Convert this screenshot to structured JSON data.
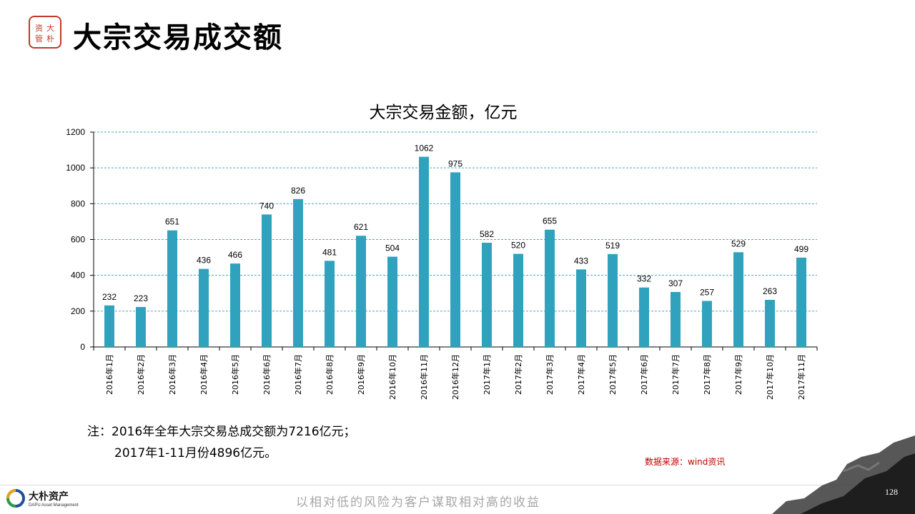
{
  "header": {
    "seal_text": "资管 大朴",
    "title": "大宗交易成交额"
  },
  "chart_data": {
    "type": "bar",
    "title": "大宗交易金额，亿元",
    "categories": [
      "2016年1月",
      "2016年2月",
      "2016年3月",
      "2016年4月",
      "2016年5月",
      "2016年6月",
      "2016年7月",
      "2016年8月",
      "2016年9月",
      "2016年10月",
      "2016年11月",
      "2016年12月",
      "2017年1月",
      "2017年2月",
      "2017年3月",
      "2017年4月",
      "2017年5月",
      "2017年6月",
      "2017年7月",
      "2017年8月",
      "2017年9月",
      "2017年10月",
      "2017年11月"
    ],
    "values": [
      232,
      223,
      651,
      436,
      466,
      740,
      826,
      481,
      621,
      504,
      1062,
      975,
      582,
      520,
      655,
      433,
      519,
      332,
      307,
      257,
      529,
      263,
      499
    ],
    "data_labels": [
      "232",
      "223",
      "651",
      "436",
      "466",
      "740",
      "826",
      "481",
      "621",
      "504",
      "1062",
      "975",
      "582",
      "520",
      "655",
      "433",
      "519",
      "332",
      "307",
      "257",
      "529",
      "263",
      "499"
    ],
    "y_ticks": [
      0,
      200,
      400,
      600,
      800,
      1000,
      1200
    ],
    "ylim": [
      0,
      1200
    ],
    "grid": true,
    "bar_color": "#31a2bd",
    "grid_color": "#4da6c8",
    "xlabel": "",
    "ylabel": ""
  },
  "note": {
    "line1": "注：2016年全年大宗交易总成交额为7216亿元；",
    "line2": "2017年1-11月份4896亿元。"
  },
  "source": "数据来源：wind资讯",
  "footer": {
    "company_name": "大朴资产",
    "company_en": "DAPU Asset Management",
    "slogan": "以相对低的风险为客户谋取相对高的收益",
    "page_number": "128"
  },
  "colors": {
    "seal_red": "#c0392b",
    "source_red": "#c00000"
  }
}
